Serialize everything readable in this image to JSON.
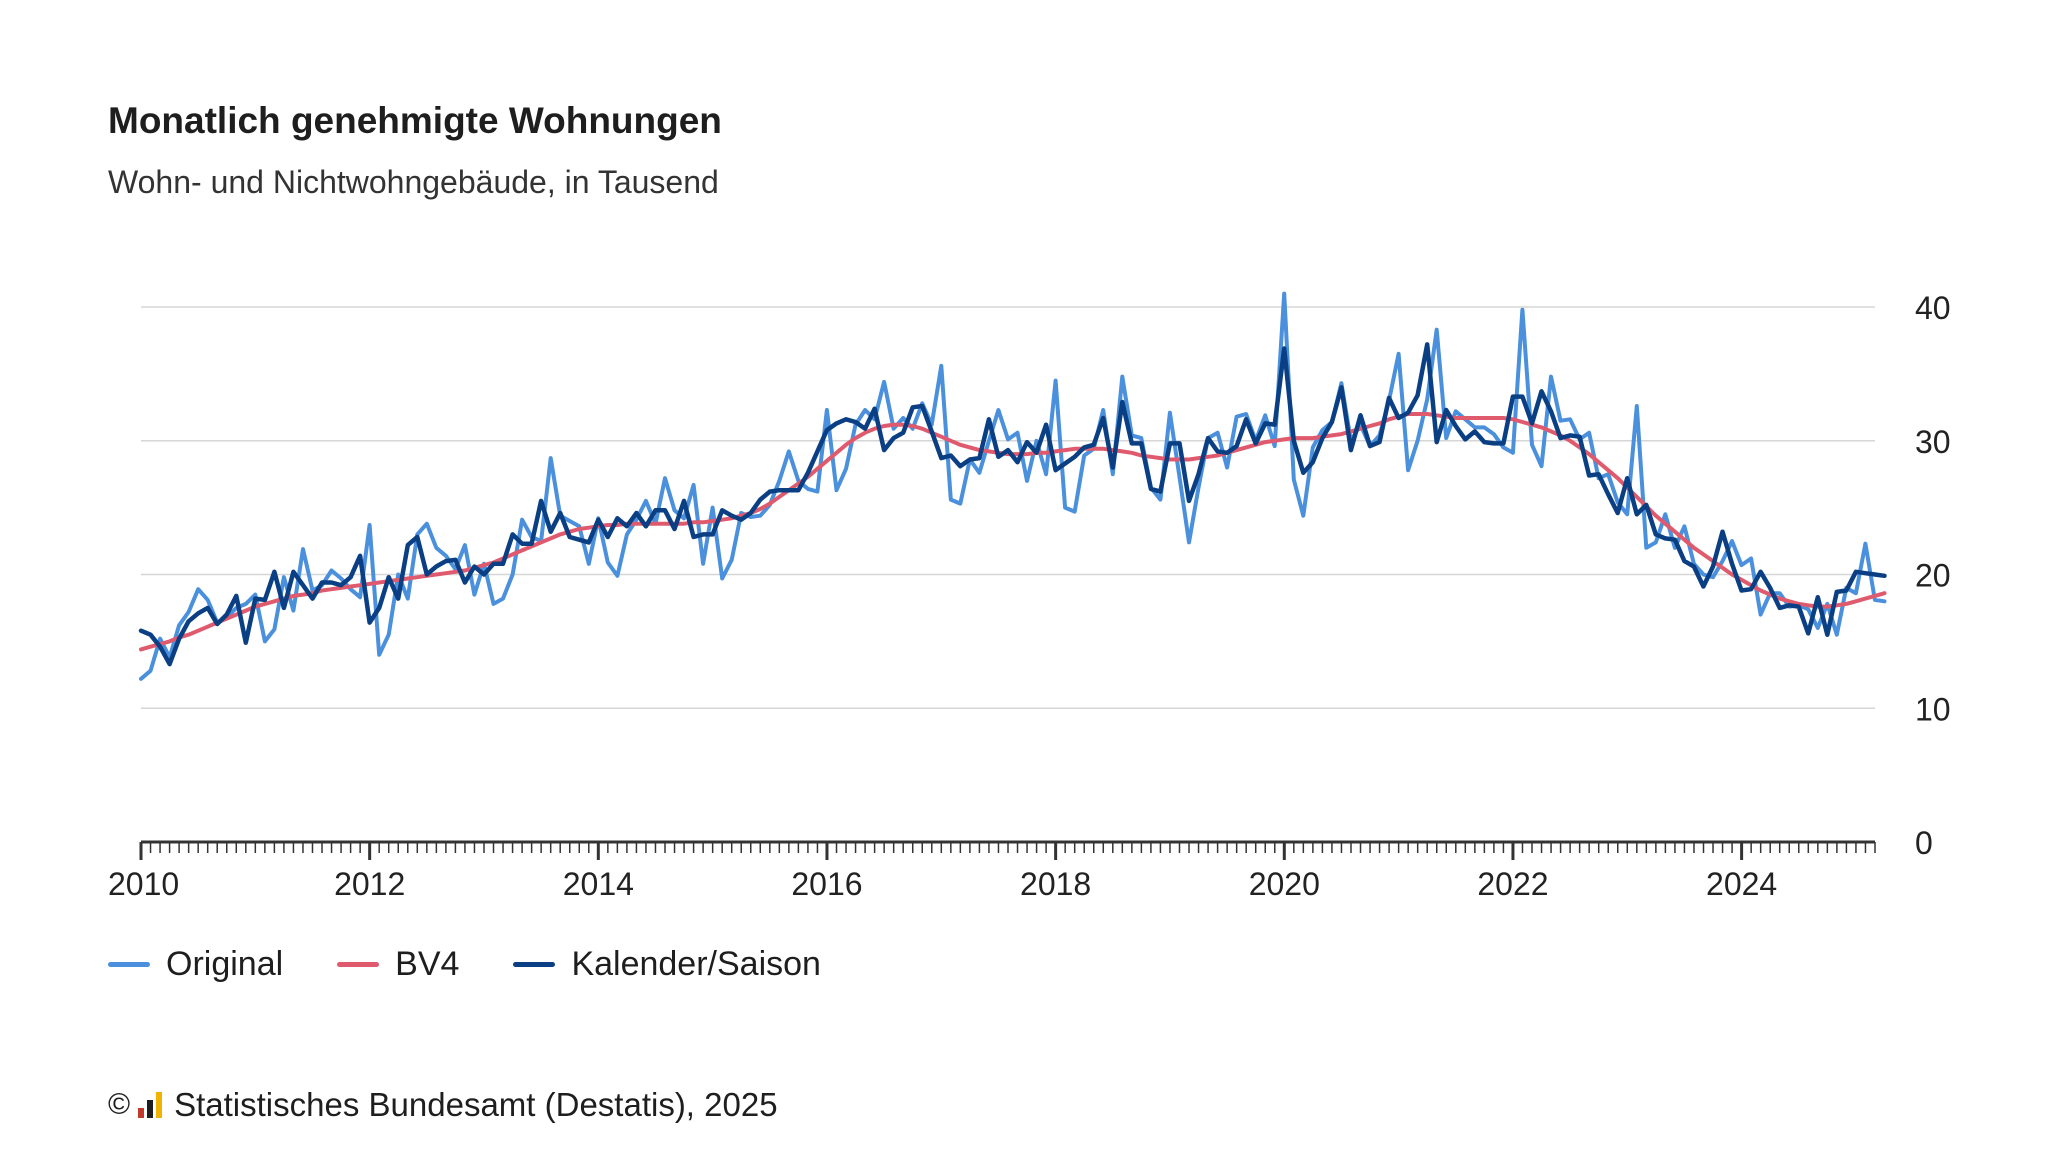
{
  "header": {
    "title": "Monatlich genehmigte Wohnungen",
    "subtitle": "Wohn- und Nichtwohngebäude, in Tausend"
  },
  "footer": {
    "copyright_symbol": "©",
    "logo_icon": "destatis-logo-icon",
    "source": "Statistisches Bundesamt (Destatis), 2025"
  },
  "colors": {
    "original": "#4a90dc",
    "bv4": "#e05a6e",
    "kalender": "#0b3f84",
    "grid": "#d6d6d6",
    "axis": "#333333"
  },
  "chart_data": {
    "type": "line",
    "title": "Monatlich genehmigte Wohnungen",
    "subtitle": "Wohn- und Nichtwohngebäude, in Tausend",
    "x_unit": "month (decimal year)",
    "x_start": 2010.0,
    "x_step": 0.08333,
    "x_ticks": [
      "2010",
      "2012",
      "2014",
      "2016",
      "2018",
      "2020",
      "2022",
      "2024"
    ],
    "xlim": [
      2010.0,
      2025.1667
    ],
    "y_ticks": [
      "0",
      "10",
      "20",
      "30",
      "40"
    ],
    "ylim": [
      0,
      40
    ],
    "y_axis_side": "right",
    "grid": true,
    "legend_position": "bottom-left",
    "series": [
      {
        "name": "Original",
        "values": [
          12.2,
          12.8,
          15.2,
          13.8,
          16.2,
          17.2,
          18.9,
          18.1,
          16.4,
          16.8,
          17.5,
          17.8,
          18.5,
          15.0,
          15.9,
          19.8,
          17.3,
          21.9,
          18.8,
          19.2,
          20.3,
          19.7,
          18.9,
          18.3,
          23.7,
          14.0,
          15.5,
          20.0,
          18.2,
          23.0,
          23.8,
          22.0,
          21.4,
          20.4,
          22.2,
          18.5,
          20.8,
          17.8,
          18.2,
          20.0,
          24.1,
          22.8,
          22.5,
          28.7,
          24.4,
          24.0,
          23.6,
          20.8,
          24.2,
          20.9,
          19.9,
          23.0,
          24.1,
          25.5,
          23.8,
          27.2,
          24.8,
          24.2,
          26.7,
          20.8,
          25.0,
          19.7,
          21.1,
          24.6,
          24.3,
          24.4,
          25.2,
          27.0,
          29.2,
          27.0,
          26.4,
          26.2,
          32.3,
          26.3,
          27.9,
          31.2,
          32.3,
          31.6,
          34.4,
          30.9,
          31.7,
          30.9,
          32.8,
          31.2,
          35.6,
          25.6,
          25.3,
          28.6,
          27.6,
          30.0,
          32.3,
          30.1,
          30.6,
          27.0,
          30.0,
          27.5,
          34.5,
          25.0,
          24.7,
          28.9,
          29.4,
          32.3,
          27.5,
          34.8,
          30.4,
          30.2,
          26.5,
          25.6,
          32.1,
          27.3,
          22.4,
          26.5,
          30.2,
          30.6,
          28.0,
          31.8,
          32.0,
          30.0,
          31.9,
          29.6,
          41.0,
          27.1,
          24.4,
          29.5,
          30.8,
          31.4,
          34.3,
          30.0,
          31.2,
          29.6,
          30.4,
          33.0,
          36.5,
          27.8,
          30.0,
          33.1,
          38.3,
          30.2,
          32.2,
          31.6,
          31.0,
          31.0,
          30.5,
          29.5,
          29.1,
          39.8,
          29.7,
          28.1,
          34.8,
          31.5,
          31.6,
          30.1,
          30.6,
          27.2,
          27.5,
          25.4,
          24.5,
          32.6,
          22.0,
          22.4,
          24.5,
          22.0,
          23.6,
          20.8,
          20.0,
          19.8,
          21.0,
          22.5,
          20.7,
          21.2,
          17.0,
          18.6,
          18.6,
          17.6,
          17.7,
          17.4,
          16.0,
          17.8,
          15.5,
          19.0,
          18.6,
          22.3,
          18.1,
          18.0
        ]
      },
      {
        "name": "BV4",
        "values": [
          14.4,
          14.6,
          14.8,
          15.0,
          15.3,
          15.5,
          15.8,
          16.1,
          16.4,
          16.7,
          17.0,
          17.3,
          17.6,
          17.8,
          18.0,
          18.2,
          18.4,
          18.5,
          18.6,
          18.8,
          18.9,
          19.0,
          19.1,
          19.2,
          19.3,
          19.4,
          19.5,
          19.6,
          19.7,
          19.8,
          19.9,
          20.0,
          20.1,
          20.2,
          20.3,
          20.5,
          20.7,
          20.9,
          21.2,
          21.5,
          21.8,
          22.1,
          22.4,
          22.7,
          23.0,
          23.2,
          23.4,
          23.5,
          23.6,
          23.7,
          23.7,
          23.8,
          23.8,
          23.8,
          23.8,
          23.8,
          23.8,
          23.8,
          23.9,
          23.9,
          24.0,
          24.1,
          24.2,
          24.4,
          24.6,
          24.9,
          25.3,
          25.8,
          26.3,
          26.8,
          27.3,
          27.9,
          28.5,
          29.1,
          29.7,
          30.2,
          30.6,
          30.9,
          31.1,
          31.2,
          31.2,
          31.1,
          30.9,
          30.6,
          30.3,
          30.0,
          29.7,
          29.5,
          29.3,
          29.2,
          29.1,
          29.0,
          29.0,
          29.0,
          29.1,
          29.1,
          29.2,
          29.3,
          29.4,
          29.4,
          29.4,
          29.4,
          29.3,
          29.2,
          29.1,
          28.9,
          28.8,
          28.7,
          28.6,
          28.6,
          28.6,
          28.7,
          28.8,
          28.9,
          29.1,
          29.3,
          29.5,
          29.7,
          29.9,
          30.0,
          30.1,
          30.2,
          30.2,
          30.2,
          30.3,
          30.4,
          30.5,
          30.7,
          30.9,
          31.1,
          31.3,
          31.6,
          31.8,
          32.0,
          32.0,
          32.0,
          31.9,
          31.8,
          31.7,
          31.7,
          31.7,
          31.7,
          31.7,
          31.7,
          31.6,
          31.4,
          31.2,
          31.0,
          30.7,
          30.4,
          30.0,
          29.5,
          29.0,
          28.4,
          27.8,
          27.2,
          26.5,
          25.8,
          25.1,
          24.4,
          23.8,
          23.2,
          22.6,
          22.0,
          21.5,
          21.0,
          20.5,
          20.0,
          19.6,
          19.2,
          18.8,
          18.5,
          18.2,
          18.0,
          17.8,
          17.7,
          17.6,
          17.6,
          17.7,
          17.8,
          18.0,
          18.2,
          18.4,
          18.6
        ]
      },
      {
        "name": "Kalender/Saison",
        "values": [
          15.8,
          15.5,
          14.6,
          13.3,
          15.2,
          16.5,
          17.1,
          17.5,
          16.3,
          17.0,
          18.4,
          14.9,
          18.2,
          18.1,
          20.2,
          17.5,
          20.2,
          19.2,
          18.2,
          19.4,
          19.4,
          19.2,
          19.8,
          21.4,
          16.4,
          17.5,
          19.8,
          18.2,
          22.2,
          22.8,
          20.0,
          20.6,
          21.0,
          21.1,
          19.4,
          20.6,
          20.0,
          20.8,
          20.8,
          23.0,
          22.3,
          22.3,
          25.5,
          23.2,
          24.6,
          22.8,
          22.6,
          22.4,
          24.1,
          22.8,
          24.2,
          23.6,
          24.6,
          23.6,
          24.8,
          24.8,
          23.4,
          25.5,
          22.8,
          23.0,
          23.0,
          24.8,
          24.4,
          24.1,
          24.6,
          25.6,
          26.2,
          26.3,
          26.3,
          26.3,
          27.6,
          29.2,
          30.8,
          31.3,
          31.6,
          31.4,
          30.9,
          32.4,
          29.3,
          30.2,
          30.6,
          32.5,
          32.6,
          30.7,
          28.7,
          28.9,
          28.1,
          28.6,
          28.7,
          31.6,
          28.8,
          29.3,
          28.4,
          29.9,
          29.1,
          31.2,
          27.8,
          28.3,
          28.8,
          29.5,
          29.7,
          31.7,
          28.0,
          32.9,
          29.8,
          29.8,
          26.4,
          26.2,
          29.8,
          29.8,
          25.5,
          27.5,
          30.2,
          29.2,
          29.1,
          29.6,
          31.6,
          29.8,
          31.3,
          31.2,
          36.9,
          30.0,
          27.6,
          28.4,
          30.2,
          31.4,
          34.0,
          29.3,
          31.9,
          29.6,
          29.9,
          33.2,
          31.7,
          32.1,
          33.4,
          37.2,
          29.9,
          32.3,
          31.1,
          30.1,
          30.7,
          29.9,
          29.8,
          29.8,
          33.3,
          33.3,
          31.3,
          33.7,
          32.2,
          30.2,
          30.4,
          30.3,
          27.4,
          27.5,
          26.0,
          24.6,
          27.2,
          24.5,
          25.2,
          23.0,
          22.7,
          22.6,
          21.0,
          20.6,
          19.1,
          20.6,
          23.2,
          20.8,
          18.8,
          18.9,
          20.2,
          19.0,
          17.5,
          17.7,
          17.6,
          15.6,
          18.3,
          15.5,
          18.7,
          18.8,
          20.2,
          20.1,
          20.0,
          19.9
        ]
      }
    ]
  }
}
